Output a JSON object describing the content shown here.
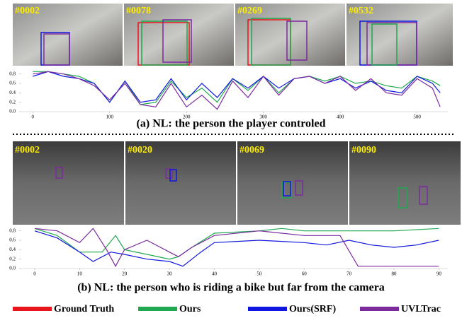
{
  "frames_a": [
    "#0002",
    "#0078",
    "#0269",
    "#0532"
  ],
  "frames_b": [
    "#0002",
    "#0020",
    "#0069",
    "#0090"
  ],
  "caption_a": "(a) NL: the person the player controled",
  "caption_b": "(b) NL: the person who is riding a bike but far from the camera",
  "legend": [
    {
      "name": "Ground Truth",
      "color": "#e8141c"
    },
    {
      "name": "Ours",
      "color": "#1fa84f"
    },
    {
      "name": "Ours(SRF)",
      "color": "#1016e0"
    },
    {
      "name": "UVLTrac",
      "color": "#7b2a9e"
    }
  ],
  "chart_data": [
    {
      "type": "line",
      "xlim": [
        -15,
        540
      ],
      "xticks": [
        0,
        100,
        200,
        300,
        400,
        500
      ],
      "ylim": [
        0,
        0.9
      ],
      "yticks": [
        {
          "value": 0,
          "label": "0.0"
        },
        0.2,
        0.4,
        0.6,
        0.8
      ],
      "series": [
        {
          "legend": 1,
          "x": [
            0,
            20,
            40,
            60,
            80,
            100,
            120,
            140,
            160,
            180,
            200,
            220,
            240,
            260,
            280,
            300,
            320,
            340,
            360,
            380,
            400,
            420,
            440,
            460,
            480,
            500,
            520,
            530
          ],
          "values": [
            0.85,
            0.85,
            0.8,
            0.75,
            0.6,
            0.2,
            0.65,
            0.15,
            0.2,
            0.65,
            0.3,
            0.5,
            0.2,
            0.7,
            0.45,
            0.75,
            0.4,
            0.7,
            0.75,
            0.65,
            0.75,
            0.6,
            0.65,
            0.55,
            0.5,
            0.75,
            0.65,
            0.55
          ]
        },
        {
          "legend": 2,
          "x": [
            0,
            20,
            40,
            60,
            80,
            100,
            120,
            140,
            160,
            180,
            200,
            220,
            240,
            260,
            280,
            300,
            320,
            340,
            360,
            380,
            400,
            420,
            440,
            460,
            480,
            500,
            520,
            530
          ],
          "values": [
            0.75,
            0.85,
            0.75,
            0.7,
            0.6,
            0.2,
            0.65,
            0.2,
            0.25,
            0.7,
            0.25,
            0.6,
            0.3,
            0.7,
            0.5,
            0.75,
            0.5,
            0.7,
            0.75,
            0.6,
            0.7,
            0.5,
            0.65,
            0.45,
            0.4,
            0.75,
            0.6,
            0.4
          ]
        },
        {
          "legend": 3,
          "x": [
            0,
            20,
            40,
            60,
            80,
            100,
            120,
            140,
            160,
            180,
            200,
            220,
            240,
            260,
            280,
            300,
            320,
            340,
            360,
            380,
            400,
            420,
            440,
            460,
            480,
            500,
            520,
            530
          ],
          "values": [
            0.8,
            0.85,
            0.8,
            0.7,
            0.55,
            0.25,
            0.6,
            0.15,
            0.1,
            0.6,
            0.1,
            0.35,
            0.05,
            0.65,
            0.3,
            0.75,
            0.35,
            0.7,
            0.75,
            0.6,
            0.75,
            0.45,
            0.7,
            0.4,
            0.35,
            0.7,
            0.5,
            0.1
          ]
        }
      ]
    },
    {
      "type": "line",
      "xlim": [
        -3,
        92
      ],
      "xticks": [
        0,
        10,
        20,
        30,
        40,
        50,
        60,
        70,
        80,
        90
      ],
      "ylim": [
        0,
        0.9
      ],
      "yticks": [
        {
          "value": 0,
          "label": "0.0"
        },
        0.2,
        0.4,
        0.6,
        0.8
      ],
      "series": [
        {
          "legend": 1,
          "x": [
            0,
            5,
            10,
            15,
            18,
            20,
            25,
            30,
            32,
            35,
            40,
            50,
            55,
            60,
            70,
            80,
            90
          ],
          "values": [
            0.85,
            0.7,
            0.35,
            0.35,
            0.7,
            0.4,
            0.3,
            0.2,
            0.25,
            0.45,
            0.75,
            0.8,
            0.85,
            0.8,
            0.8,
            0.8,
            0.85
          ]
        },
        {
          "legend": 2,
          "x": [
            0,
            5,
            10,
            13,
            17,
            20,
            25,
            30,
            33,
            37,
            40,
            50,
            60,
            65,
            70,
            75,
            80,
            85,
            90
          ],
          "values": [
            0.8,
            0.65,
            0.35,
            0.15,
            0.35,
            0.3,
            0.2,
            0.15,
            0.05,
            0.35,
            0.55,
            0.6,
            0.55,
            0.5,
            0.6,
            0.5,
            0.45,
            0.5,
            0.6
          ]
        },
        {
          "legend": 3,
          "x": [
            0,
            5,
            10,
            13,
            16,
            18,
            20,
            25,
            30,
            32,
            35,
            40,
            50,
            60,
            68,
            72,
            80,
            90
          ],
          "values": [
            0.85,
            0.8,
            0.55,
            0.85,
            0.4,
            0.05,
            0.4,
            0.6,
            0.35,
            0.25,
            0.45,
            0.7,
            0.8,
            0.7,
            0.7,
            0.05,
            0.05,
            0.05
          ]
        }
      ]
    }
  ]
}
